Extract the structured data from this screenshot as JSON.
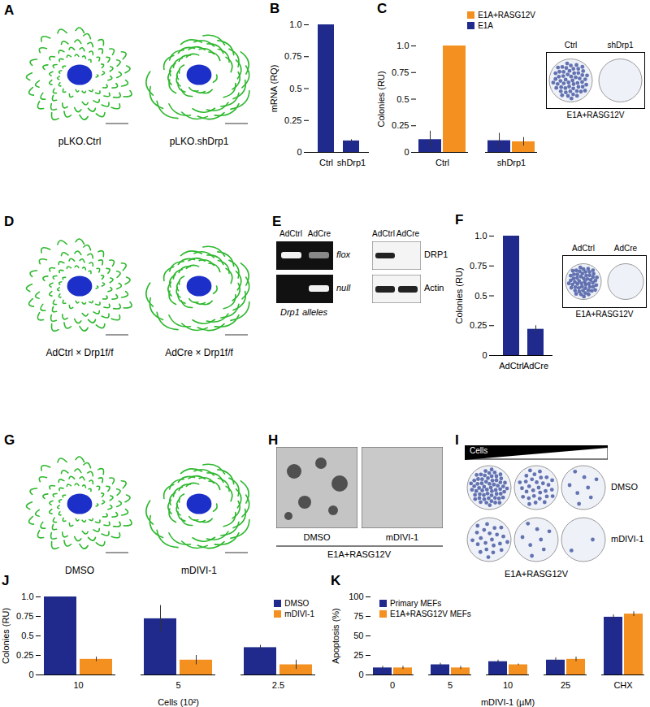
{
  "chart_data": [
    {
      "title": "B",
      "type": "bar",
      "categories": [
        "Ctrl",
        "shDrp1"
      ],
      "values": [
        1,
        0.09
      ],
      "errors": [
        0,
        0.01
      ],
      "color": "#1f2a8c",
      "ylabel": "mRNA (RQ)",
      "ylim": [
        0,
        1
      ],
      "yticks": [
        0,
        0.25,
        0.5,
        0.75,
        {
          "value": 1,
          "label": "1.0"
        }
      ]
    },
    {
      "title": "C",
      "type": "bar",
      "categories": [
        "Ctrl",
        "shDrp1"
      ],
      "series": [
        {
          "name": "E1A+RASG12V",
          "color": "#f39020",
          "values": [
            1,
            0.1
          ],
          "errors": [
            0,
            0.04
          ]
        },
        {
          "name": "E1A",
          "color": "#1f2a8c",
          "values": [
            0.12,
            0.11
          ],
          "errors": [
            0.08,
            0.07
          ]
        }
      ],
      "ylabel": "Colonies (RU)",
      "ylim": [
        0,
        1
      ],
      "yticks": [
        0,
        0.25,
        0.5,
        0.75,
        {
          "value": 1,
          "label": "1.0"
        }
      ],
      "legend": "top-right",
      "inset": {
        "labels": [
          "Ctrl",
          "shDrp1"
        ],
        "caption": "E1A+RASG12V"
      }
    },
    {
      "title": "F",
      "type": "bar",
      "categories": [
        "AdCtrl",
        "AdCre"
      ],
      "values": [
        1,
        0.22
      ],
      "errors": [
        0,
        0.03
      ],
      "color": "#1f2a8c",
      "ylabel": "Colonies (RU)",
      "ylim": [
        0,
        1
      ],
      "yticks": [
        0,
        0.25,
        0.5,
        0.75,
        {
          "value": 1,
          "label": "1.0"
        }
      ],
      "inset": {
        "labels": [
          "AdCtrl",
          "AdCre"
        ],
        "caption": "E1A+RASG12V"
      }
    },
    {
      "title": "J",
      "type": "bar",
      "categories": [
        "10",
        "5",
        "2.5"
      ],
      "xlabel": "Cells (10²)",
      "series": [
        {
          "name": "DMSO",
          "color": "#1f2a8c",
          "values": [
            1,
            0.72,
            0.35
          ],
          "errors": [
            0,
            0.17,
            0.03
          ]
        },
        {
          "name": "mDIVI-1",
          "color": "#f39020",
          "values": [
            0.2,
            0.19,
            0.13
          ],
          "errors": [
            0.03,
            0.06,
            0.06
          ]
        }
      ],
      "ylabel": "Colonies (RU)",
      "ylim": [
        0,
        1
      ],
      "yticks": [
        0,
        0.25,
        0.5,
        0.75,
        {
          "value": 1,
          "label": "1.0"
        }
      ],
      "legend": "top-right"
    },
    {
      "title": "K",
      "type": "bar",
      "categories": [
        "0",
        "5",
        "10",
        "25",
        "CHX"
      ],
      "xlabel": "mDIVI-1 (µM)",
      "series": [
        {
          "name": "Primary MEFs",
          "color": "#1f2a8c",
          "values": [
            9,
            13,
            17,
            19,
            74
          ],
          "errors": [
            2,
            2,
            2,
            3,
            3
          ]
        },
        {
          "name": "E1A+RASG12V MEFs",
          "color": "#f39020",
          "values": [
            9,
            9,
            13,
            20,
            78
          ],
          "errors": [
            2,
            2,
            1,
            3,
            3
          ]
        }
      ],
      "ylabel": "Apoptosis (%)",
      "ylim": [
        0,
        100
      ],
      "yticks": [
        0,
        25,
        50,
        75,
        100
      ],
      "legend": "top-left"
    }
  ],
  "panels": [
    {
      "letter": "A",
      "labels": [
        "pLKO.Ctrl",
        "pLKO.shDrp1"
      ]
    },
    {
      "letter": "D",
      "labels": [
        "AdCtrl × Drp1f/f",
        "AdCre × Drp1f/f"
      ]
    },
    {
      "letter": "E",
      "gel": {
        "lanes": [
          "AdCtrl",
          "AdCre"
        ],
        "rows": [
          "flox",
          "null"
        ],
        "caption": "Drp1 alleles"
      },
      "blot": {
        "lanes": [
          "AdCtrl",
          "AdCre"
        ],
        "rows": [
          "DRP1",
          "Actin"
        ]
      }
    },
    {
      "letter": "G",
      "labels": [
        "DMSO",
        "mDIVI-1"
      ]
    },
    {
      "letter": "H",
      "labels": [
        "DMSO",
        "mDIVI-1"
      ],
      "caption": "E1A+RASG12V"
    },
    {
      "letter": "I",
      "gradient": "Cells",
      "rows": [
        "DMSO",
        "mDIVI-1"
      ],
      "caption": "E1A+RASG12V"
    }
  ]
}
